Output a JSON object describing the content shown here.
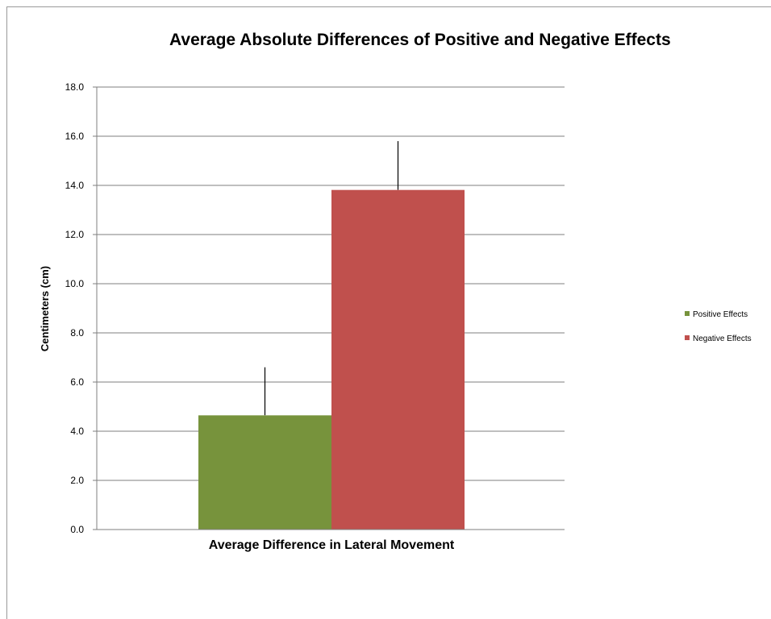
{
  "chart_data": {
    "type": "bar",
    "title": "Average Absolute Differences of Positive and Negative Effects",
    "xlabel": "Average Difference in Lateral Movement",
    "ylabel": "Centimeters (cm)",
    "ylim": [
      0,
      18
    ],
    "yticks": [
      "0.0",
      "2.0",
      "4.0",
      "6.0",
      "8.0",
      "10.0",
      "12.0",
      "14.0",
      "16.0",
      "18.0"
    ],
    "grid": true,
    "legend_position": "right",
    "categories": [
      "Average Difference in Lateral Movement"
    ],
    "series": [
      {
        "name": "Positive Effects",
        "values": [
          4.65
        ],
        "error": [
          1.95
        ],
        "color": "#77933c"
      },
      {
        "name": "Negative Effects",
        "values": [
          13.82
        ],
        "error": [
          1.98
        ],
        "color": "#c0504d"
      }
    ]
  }
}
